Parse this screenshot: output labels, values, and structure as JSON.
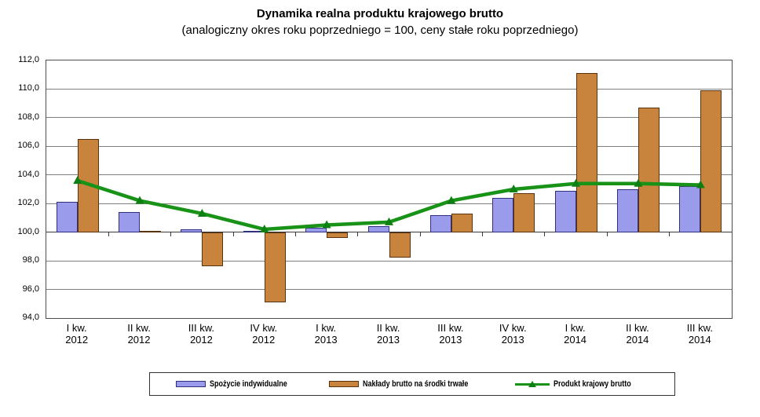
{
  "title": "Dynamika realna produktu krajowego brutto",
  "subtitle": "(analogiczny okres roku poprzedniego = 100, ceny stałe roku poprzedniego)",
  "colors": {
    "consumption_fill": "#9B9BEB",
    "consumption_border": "#2F2F7F",
    "investment_fill": "#C8843C",
    "investment_border": "#59330D",
    "gdp_line": "#189318",
    "gdp_marker": "#0d7f13",
    "gridline": "#7f7f7f",
    "plot_border": "#4c4c4c"
  },
  "chart_data": {
    "type": "combo_bar_line",
    "title": "Dynamika realna produktu krajowego brutto",
    "subtitle": "(analogiczny okres roku poprzedniego = 100, ceny stałe roku poprzedniego)",
    "categories": [
      "I kw. 2012",
      "II kw. 2012",
      "III kw. 2012",
      "IV kw. 2012",
      "I kw. 2013",
      "II kw. 2013",
      "III kw. 2013",
      "IV kw. 2013",
      "I kw. 2014",
      "II kw. 2014",
      "III kw. 2014"
    ],
    "series": [
      {
        "name": "Spożycie indywidualne",
        "type": "bar",
        "color": "#9B9BEB",
        "values": [
          102.1,
          101.4,
          100.2,
          100.1,
          100.3,
          100.4,
          101.2,
          102.4,
          102.9,
          103.0,
          103.2
        ]
      },
      {
        "name": "Nakłady brutto na środki trwałe",
        "type": "bar",
        "color": "#C8843C",
        "values": [
          106.5,
          100.1,
          97.6,
          95.1,
          99.6,
          98.2,
          101.3,
          102.7,
          111.1,
          108.7,
          109.9
        ]
      },
      {
        "name": "Produkt krajowy brutto",
        "type": "line",
        "color": "#189318",
        "values": [
          103.6,
          102.2,
          101.3,
          100.2,
          100.5,
          100.7,
          102.2,
          103.0,
          103.4,
          103.4,
          103.3
        ]
      }
    ],
    "baseline": 100,
    "ylim": [
      94,
      112
    ],
    "y_tick_step": 2,
    "y_ticks": [
      "112,0",
      "110,0",
      "108,0",
      "106,0",
      "104,0",
      "102,0",
      "100,0",
      "98,0",
      "96,0",
      "94,0"
    ],
    "grid": true,
    "legend_position": "bottom"
  }
}
